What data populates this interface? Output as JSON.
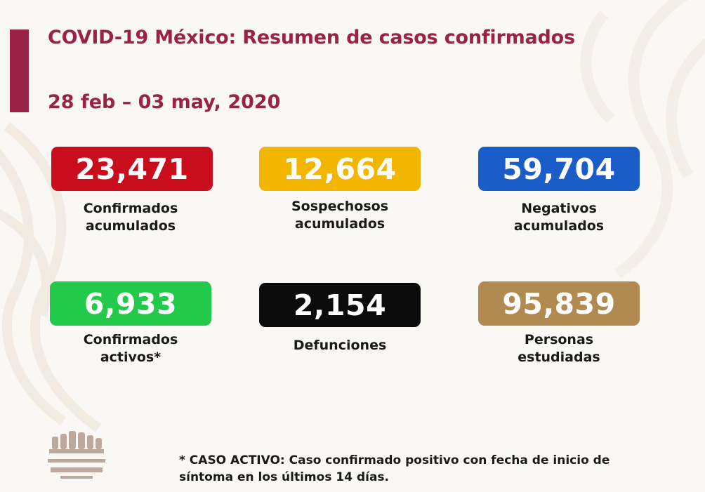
{
  "header": {
    "title": "COVID-19 México: Resumen de casos confirmados",
    "date_range": "28 feb – 03 may, 2020"
  },
  "stats": [
    {
      "value": "23,471",
      "label": "Confirmados\nacumulados",
      "color": "#c80e1d"
    },
    {
      "value": "12,664",
      "label": "Sospechosos\nacumulados",
      "color": "#f3b600"
    },
    {
      "value": "59,704",
      "label": "Negativos\nacumulados",
      "color": "#1a5cc8"
    },
    {
      "value": "6,933",
      "label": "Confirmados\nactivos*",
      "color": "#23c94a"
    },
    {
      "value": "2,154",
      "label": "Defunciones",
      "color": "#0b0b0b"
    },
    {
      "value": "95,839",
      "label": "Personas\nestudiadas",
      "color": "#b08a50"
    }
  ],
  "footnote": "* CASO ACTIVO: Caso confirmado positivo con fecha de inicio de síntoma en los últimos 14 días.",
  "colors": {
    "accent": "#9b2247",
    "background": "#faf8f5"
  }
}
